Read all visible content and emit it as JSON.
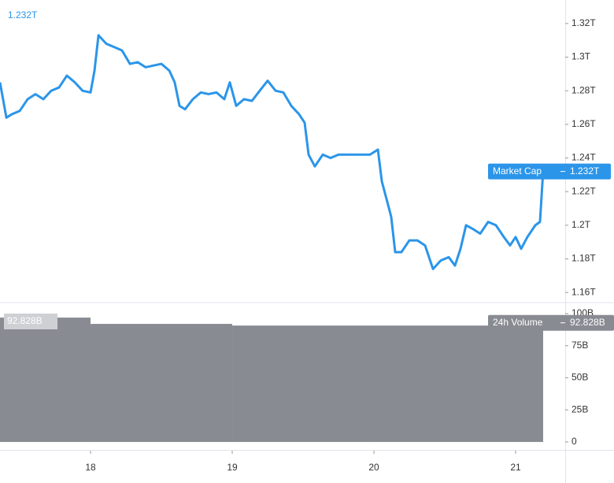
{
  "chart_data": [
    {
      "type": "line",
      "x": [
        17.361,
        17.406,
        17.444,
        17.5,
        17.556,
        17.611,
        17.667,
        17.722,
        17.778,
        17.833,
        17.889,
        17.944,
        18.0,
        18.028,
        18.056,
        18.111,
        18.167,
        18.222,
        18.278,
        18.333,
        18.389,
        18.444,
        18.5,
        18.556,
        18.594,
        18.628,
        18.667,
        18.722,
        18.778,
        18.833,
        18.889,
        18.944,
        18.983,
        19.028,
        19.083,
        19.139,
        19.194,
        19.25,
        19.306,
        19.361,
        19.417,
        19.472,
        19.511,
        19.539,
        19.583,
        19.639,
        19.694,
        19.75,
        19.806,
        19.861,
        19.917,
        19.972,
        20.028,
        20.056,
        20.094,
        20.122,
        20.15,
        20.194,
        20.25,
        20.306,
        20.361,
        20.417,
        20.472,
        20.528,
        20.572,
        20.611,
        20.65,
        20.694,
        20.75,
        20.806,
        20.861,
        20.917,
        20.961,
        21.0,
        21.039,
        21.083,
        21.139,
        21.172,
        21.194
      ],
      "series": [
        {
          "name": "Market Cap",
          "color": "#2b95e9",
          "last_label": "1.232T",
          "values": [
            1.285,
            1.264,
            1.266,
            1.268,
            1.275,
            1.278,
            1.275,
            1.28,
            1.282,
            1.289,
            1.285,
            1.28,
            1.279,
            1.292,
            1.313,
            1.308,
            1.306,
            1.304,
            1.296,
            1.297,
            1.294,
            1.295,
            1.296,
            1.292,
            1.285,
            1.271,
            1.269,
            1.275,
            1.279,
            1.278,
            1.279,
            1.275,
            1.285,
            1.271,
            1.275,
            1.274,
            1.28,
            1.286,
            1.28,
            1.279,
            1.271,
            1.266,
            1.261,
            1.242,
            1.235,
            1.242,
            1.24,
            1.242,
            1.242,
            1.242,
            1.242,
            1.242,
            1.245,
            1.226,
            1.214,
            1.205,
            1.184,
            1.184,
            1.191,
            1.191,
            1.188,
            1.174,
            1.179,
            1.181,
            1.176,
            1.186,
            1.2,
            1.198,
            1.195,
            1.202,
            1.2,
            1.193,
            1.188,
            1.193,
            1.186,
            1.193,
            1.2,
            1.202,
            1.232
          ]
        }
      ],
      "xlim": [
        17.361,
        21.361
      ],
      "ylim": [
        1.154,
        1.334
      ],
      "yticks": [
        {
          "value": 1.16,
          "label": "1.16T"
        },
        {
          "value": 1.18,
          "label": "1.18T"
        },
        {
          "value": 1.2,
          "label": "1.2T"
        },
        {
          "value": 1.22,
          "label": "1.22T"
        },
        {
          "value": 1.24,
          "label": "1.24T"
        },
        {
          "value": 1.26,
          "label": "1.26T"
        },
        {
          "value": 1.28,
          "label": "1.28T"
        },
        {
          "value": 1.3,
          "label": "1.3T"
        },
        {
          "value": 1.32,
          "label": "1.32T"
        }
      ]
    },
    {
      "type": "area",
      "x": [
        17.361,
        18.0,
        19.0,
        20.0,
        21.194
      ],
      "series": [
        {
          "name": "24h Volume",
          "color": "#898b93",
          "last_label": "92.828B",
          "values": [
            96.9,
            92.0,
            90.7,
            90.7,
            92.828
          ]
        }
      ],
      "xlim": [
        17.361,
        21.361
      ],
      "ylim": [
        -6.2,
        108
      ],
      "xticks": [
        18,
        19,
        20,
        21
      ],
      "yticks": [
        0,
        {
          "value": 25,
          "label": "25B"
        },
        {
          "value": 50,
          "label": "50B"
        },
        {
          "value": 75,
          "label": "75B"
        },
        {
          "value": 100,
          "label": "100B"
        }
      ]
    }
  ]
}
